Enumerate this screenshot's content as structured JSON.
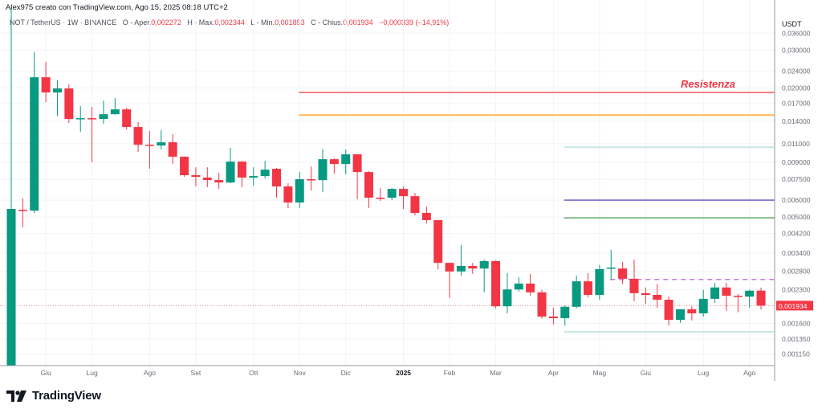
{
  "caption": "Alex975 creato con TradingView.com, Ago 15, 2025 08:18 UTC+2",
  "legend": {
    "symbol": "NOT / TetherUS · 1W · BINANCE",
    "open_label": "O - Aper.",
    "open": "0,002272",
    "high_label": "H - Max.",
    "high": "0,002344",
    "low_label": "L - Min.",
    "low": "0,001853",
    "close_label": "C - Chius.",
    "close": "0,001934",
    "change": "−0,000339 (−14,91%)"
  },
  "currency": "USDT",
  "logo_text": "TradingView",
  "colors": {
    "up": "#089981",
    "down": "#f23645",
    "grid": "#f0f3fa",
    "axis_text": "#6a6d78"
  },
  "chart_data": {
    "type": "candlestick",
    "title": "NOT / TetherUS · 1W · BINANCE",
    "y_scale": "log",
    "ylim": [
      0.001016,
      0.0514
    ],
    "grid": true,
    "y_ticks": [
      "0,036000",
      "0,030000",
      "0,024000",
      "0,020000",
      "0,017000",
      "0,014000",
      "0,011000",
      "0,009000",
      "0,007500",
      "0,006000",
      "0,005000",
      "0,004200",
      "0,003400",
      "0,002800",
      "0,002300",
      "0,001600",
      "0,001350",
      "0,001150"
    ],
    "y_tick_values": [
      0.036,
      0.03,
      0.024,
      0.02,
      0.017,
      0.014,
      0.011,
      0.009,
      0.0075,
      0.006,
      0.005,
      0.0042,
      0.0034,
      0.0028,
      0.0023,
      0.0016,
      0.00135,
      0.00115
    ],
    "x_ticks": [
      {
        "label": "Giu",
        "candle": 4
      },
      {
        "label": "Lug",
        "candle": 8
      },
      {
        "label": "Ago",
        "candle": 13
      },
      {
        "label": "Set",
        "candle": 17
      },
      {
        "label": "Ott",
        "candle": 22
      },
      {
        "label": "Nov",
        "candle": 26
      },
      {
        "label": "Dic",
        "candle": 30
      },
      {
        "label": "2025",
        "candle": 35,
        "bold": true
      },
      {
        "label": "Feb",
        "candle": 39
      },
      {
        "label": "Mar",
        "candle": 43
      },
      {
        "label": "Apr",
        "candle": 48
      },
      {
        "label": "Mag",
        "candle": 52
      },
      {
        "label": "Giu",
        "candle": 56
      },
      {
        "label": "Lug",
        "candle": 61
      },
      {
        "label": "Ago",
        "candle": 65
      }
    ],
    "ohlc": [
      [
        0.00102,
        0.0475,
        0.001,
        0.00546
      ],
      [
        0.00541,
        0.00611,
        0.00448,
        0.00536
      ],
      [
        0.00536,
        0.0293,
        0.00523,
        0.02243
      ],
      [
        0.02243,
        0.02642,
        0.01717,
        0.01905
      ],
      [
        0.01905,
        0.02167,
        0.01483,
        0.01989
      ],
      [
        0.01989,
        0.02076,
        0.01373,
        0.01433
      ],
      [
        0.01433,
        0.01645,
        0.01248,
        0.01446
      ],
      [
        0.01446,
        0.01631,
        0.009,
        0.01433
      ],
      [
        0.01433,
        0.01747,
        0.01361,
        0.01509
      ],
      [
        0.01509,
        0.01793,
        0.015,
        0.01589
      ],
      [
        0.01589,
        0.01617,
        0.01281,
        0.01315
      ],
      [
        0.01315,
        0.01385,
        0.01006,
        0.01087
      ],
      [
        0.01087,
        0.01259,
        0.0084,
        0.01078
      ],
      [
        0.01078,
        0.0127,
        0.01033,
        0.01116
      ],
      [
        0.01116,
        0.01217,
        0.00884,
        0.00956
      ],
      [
        0.00956,
        0.0096,
        0.0077,
        0.00784
      ],
      [
        0.00784,
        0.00854,
        0.00695,
        0.0077
      ],
      [
        0.00764,
        0.00854,
        0.00689,
        0.00744
      ],
      [
        0.00744,
        0.00805,
        0.00677,
        0.00725
      ],
      [
        0.00725,
        0.01051,
        0.00719,
        0.00907
      ],
      [
        0.00907,
        0.00915,
        0.00689,
        0.00764
      ],
      [
        0.00764,
        0.00854,
        0.00701,
        0.00777
      ],
      [
        0.00777,
        0.00915,
        0.00757,
        0.00832
      ],
      [
        0.0084,
        0.00847,
        0.00616,
        0.00695
      ],
      [
        0.00695,
        0.00719,
        0.00551,
        0.00585
      ],
      [
        0.00585,
        0.00811,
        0.00551,
        0.00751
      ],
      [
        0.00751,
        0.00862,
        0.00665,
        0.00744
      ],
      [
        0.00744,
        0.01033,
        0.00654,
        0.00931
      ],
      [
        0.00931,
        0.00939,
        0.00798,
        0.00884
      ],
      [
        0.00884,
        0.01033,
        0.00791,
        0.00981
      ],
      [
        0.00981,
        0.00981,
        0.00605,
        0.00811
      ],
      [
        0.00811,
        0.00818,
        0.00551,
        0.00616
      ],
      [
        0.00616,
        0.00683,
        0.00595,
        0.00611
      ],
      [
        0.00616,
        0.00683,
        0.006,
        0.00677
      ],
      [
        0.00677,
        0.00695,
        0.00546,
        0.00626
      ],
      [
        0.00626,
        0.00648,
        0.00509,
        0.00523
      ],
      [
        0.00523,
        0.0056,
        0.00467,
        0.00484
      ],
      [
        0.00484,
        0.00484,
        0.00286,
        0.00306
      ],
      [
        0.00306,
        0.00306,
        0.0021,
        0.00279
      ],
      [
        0.00279,
        0.0037,
        0.00267,
        0.00296
      ],
      [
        0.00296,
        0.00306,
        0.00272,
        0.00288
      ],
      [
        0.00288,
        0.00317,
        0.00223,
        0.00312
      ],
      [
        0.00312,
        0.00314,
        0.00188,
        0.00192
      ],
      [
        0.00192,
        0.00274,
        0.00178,
        0.0023
      ],
      [
        0.0023,
        0.00262,
        0.00225,
        0.00245
      ],
      [
        0.00245,
        0.00272,
        0.00215,
        0.00223
      ],
      [
        0.00223,
        0.00229,
        0.00168,
        0.00172
      ],
      [
        0.00172,
        0.00189,
        0.00158,
        0.00169
      ],
      [
        0.00169,
        0.00194,
        0.00156,
        0.00191
      ],
      [
        0.00191,
        0.00267,
        0.00188,
        0.00251
      ],
      [
        0.00251,
        0.00274,
        0.00211,
        0.00217
      ],
      [
        0.00217,
        0.00299,
        0.00206,
        0.00286
      ],
      [
        0.00288,
        0.00352,
        0.00254,
        0.00291
      ],
      [
        0.00288,
        0.00309,
        0.00244,
        0.00258
      ],
      [
        0.00258,
        0.00317,
        0.00203,
        0.00221
      ],
      [
        0.00221,
        0.00235,
        0.00197,
        0.00217
      ],
      [
        0.00217,
        0.00244,
        0.00189,
        0.00206
      ],
      [
        0.00206,
        0.00213,
        0.00156,
        0.00166
      ],
      [
        0.00166,
        0.00186,
        0.00161,
        0.00186
      ],
      [
        0.00186,
        0.00192,
        0.00165,
        0.00178
      ],
      [
        0.00178,
        0.00229,
        0.00172,
        0.00208
      ],
      [
        0.00208,
        0.00247,
        0.00199,
        0.00235
      ],
      [
        0.00235,
        0.00247,
        0.00183,
        0.00215
      ],
      [
        0.00215,
        0.00219,
        0.0018,
        0.00213
      ],
      [
        0.00213,
        0.00229,
        0.00189,
        0.00227
      ],
      [
        0.002272,
        0.002344,
        0.001853,
        0.001934
      ]
    ],
    "last_price": {
      "value": 0.001934,
      "label": "0,001934"
    },
    "annotations": [
      {
        "type": "hline",
        "value": 0.01905,
        "from_candle": 26,
        "color": "#f23645",
        "label": "Resistenza"
      },
      {
        "type": "hline",
        "value": 0.01496,
        "from_candle": 26,
        "color": "#ff9800"
      },
      {
        "type": "hline",
        "value": 0.0106,
        "from_candle": 49,
        "color": "#b2dfdb"
      },
      {
        "type": "hline",
        "value": 0.006,
        "from_candle": 49,
        "color": "#5e4fc0"
      },
      {
        "type": "hline",
        "value": 0.00496,
        "from_candle": 49,
        "color": "#43a047"
      },
      {
        "type": "hline",
        "value": 0.00256,
        "from_candle": 53,
        "color": "#c167e0",
        "dashed": true
      },
      {
        "type": "hline",
        "value": 0.00146,
        "from_candle": 49,
        "color": "#b2dfdb"
      }
    ]
  }
}
